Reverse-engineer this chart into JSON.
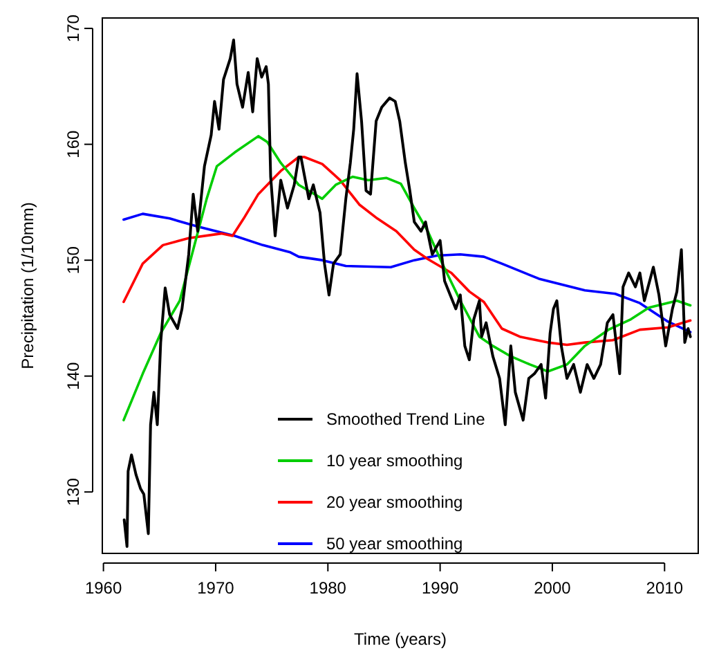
{
  "chart_data": {
    "type": "line",
    "xlabel": "Time (years)",
    "ylabel": "Precipitation (1/10mm)",
    "xlim": [
      1959.9,
      2013
    ],
    "ylim": [
      124.7,
      170.9
    ],
    "xticks": [
      1960,
      1970,
      1980,
      1990,
      2000,
      2010
    ],
    "yticks": [
      130,
      140,
      150,
      160,
      170
    ],
    "grid": false,
    "legend": "bottom",
    "marker": "none",
    "line_style": "solid",
    "series": [
      {
        "name": "Smoothed Trend Line",
        "color": "#000000",
        "x": [
          1961.85,
          1962.1,
          1962.2,
          1962.5,
          1962.9,
          1963.3,
          1963.6,
          1964.0,
          1964.2,
          1964.5,
          1964.8,
          1965.1,
          1965.5,
          1965.9,
          1966.6,
          1967.0,
          1967.6,
          1968.0,
          1968.4,
          1969.0,
          1969.6,
          1969.9,
          1970.3,
          1970.7,
          1971.3,
          1971.6,
          1971.9,
          1972.4,
          1972.9,
          1973.3,
          1973.7,
          1974.1,
          1974.5,
          1974.7,
          1974.9,
          1975.3,
          1975.8,
          1976.4,
          1977.0,
          1977.4,
          1977.6,
          1978.3,
          1978.7,
          1979.3,
          1979.7,
          1980.1,
          1980.5,
          1981.1,
          1981.6,
          1982.0,
          1982.3,
          1982.6,
          1983.0,
          1983.4,
          1983.8,
          1984.3,
          1984.8,
          1985.5,
          1986.0,
          1986.4,
          1986.9,
          1987.3,
          1987.7,
          1988.3,
          1988.7,
          1989.3,
          1990.0,
          1990.4,
          1990.9,
          1991.4,
          1991.8,
          1992.2,
          1992.6,
          1993.0,
          1993.5,
          1993.7,
          1994.1,
          1994.7,
          1995.3,
          1995.8,
          1996.3,
          1996.7,
          1997.4,
          1997.9,
          1998.4,
          1999.0,
          1999.4,
          1999.8,
          2000.1,
          2000.4,
          2000.8,
          2001.3,
          2001.9,
          2002.5,
          2003.1,
          2003.7,
          2004.3,
          2004.9,
          2005.4,
          2006.0,
          2006.3,
          2006.8,
          2007.4,
          2007.8,
          2008.2,
          2009.0,
          2009.5,
          2010.1,
          2010.7,
          2011.1,
          2011.5,
          2011.8,
          2012.1,
          2012.3
        ],
        "values": [
          127.6,
          125.3,
          131.8,
          133.2,
          131.5,
          130.3,
          129.8,
          126.4,
          135.8,
          138.6,
          135.8,
          142.9,
          147.6,
          145.3,
          144.1,
          145.8,
          150.5,
          155.7,
          152.5,
          158.1,
          160.8,
          163.7,
          161.3,
          165.6,
          167.4,
          169.0,
          165.2,
          163.2,
          166.2,
          162.8,
          167.4,
          165.8,
          166.7,
          165.2,
          157.2,
          152.1,
          156.9,
          154.5,
          156.5,
          158.9,
          158.9,
          155.3,
          156.5,
          154.1,
          149.7,
          147.0,
          149.7,
          150.5,
          155.3,
          158.4,
          161.3,
          166.1,
          162.0,
          156.0,
          155.7,
          162.0,
          163.2,
          164.0,
          163.7,
          162.0,
          158.4,
          156.0,
          153.3,
          152.5,
          153.3,
          150.5,
          151.7,
          148.2,
          147.0,
          145.8,
          147.0,
          142.6,
          141.4,
          144.9,
          146.5,
          143.4,
          144.6,
          141.7,
          139.8,
          135.8,
          142.6,
          138.6,
          136.2,
          139.8,
          140.2,
          141.0,
          138.1,
          143.7,
          145.8,
          146.5,
          142.6,
          139.8,
          141.0,
          138.6,
          141.0,
          139.8,
          141.0,
          144.6,
          145.3,
          140.2,
          147.7,
          148.9,
          147.7,
          148.9,
          146.5,
          149.4,
          147.0,
          142.6,
          145.8,
          147.3,
          150.9,
          142.9,
          144.1,
          143.4
        ]
      },
      {
        "name": "10 year smoothing",
        "color": "#00cd00",
        "x": [
          1961.8,
          1963.5,
          1965.1,
          1966.8,
          1968.0,
          1969.2,
          1970.1,
          1971.7,
          1973.8,
          1974.6,
          1975.8,
          1977.4,
          1979.5,
          1980.7,
          1982.2,
          1983.6,
          1985.2,
          1986.5,
          1987.7,
          1988.9,
          1990.2,
          1991.8,
          1993.5,
          1994.7,
          1996.3,
          1998.0,
          1999.6,
          2001.3,
          2002.9,
          2005.0,
          2007.0,
          2008.6,
          2011.1,
          2012.3
        ],
        "values": [
          136.2,
          140.2,
          143.7,
          146.5,
          150.9,
          155.3,
          158.1,
          159.3,
          160.7,
          160.2,
          158.4,
          156.5,
          155.3,
          156.5,
          157.2,
          156.9,
          157.1,
          156.6,
          154.5,
          152.5,
          149.7,
          146.5,
          143.4,
          142.6,
          141.7,
          141.0,
          140.4,
          141.0,
          142.6,
          144.0,
          144.9,
          145.9,
          146.5,
          146.1
        ]
      },
      {
        "name": "20 year smoothing",
        "color": "#ff0000",
        "x": [
          1961.8,
          1963.5,
          1965.3,
          1967.6,
          1970.5,
          1971.5,
          1972.5,
          1973.8,
          1975.8,
          1977.4,
          1977.9,
          1979.5,
          1981.1,
          1982.8,
          1984.4,
          1986.1,
          1987.7,
          1988.9,
          1991.0,
          1992.6,
          1993.9,
          1995.5,
          1997.1,
          1999.6,
          2001.3,
          2002.9,
          2005.4,
          2007.8,
          2010.3,
          2012.3
        ],
        "values": [
          146.4,
          149.7,
          151.3,
          151.9,
          152.3,
          152.1,
          153.6,
          155.7,
          157.7,
          158.9,
          158.9,
          158.3,
          156.9,
          154.8,
          153.6,
          152.5,
          150.9,
          150.1,
          148.9,
          147.3,
          146.4,
          144.1,
          143.4,
          142.9,
          142.7,
          142.9,
          143.1,
          144.0,
          144.2,
          144.8
        ]
      },
      {
        "name": "50 year smoothing",
        "color": "#0000ff",
        "x": [
          1961.8,
          1963.5,
          1965.9,
          1968.4,
          1971.7,
          1974.2,
          1976.6,
          1977.4,
          1979.5,
          1981.6,
          1985.6,
          1987.7,
          1989.7,
          1991.8,
          1993.9,
          1995.5,
          1998.8,
          2002.9,
          2005.6,
          2007.8,
          2010.3,
          2012.3
        ],
        "values": [
          153.5,
          154.0,
          153.6,
          152.9,
          152.1,
          151.3,
          150.7,
          150.3,
          150.0,
          149.5,
          149.4,
          150.0,
          150.4,
          150.5,
          150.3,
          149.7,
          148.4,
          147.4,
          147.1,
          146.3,
          144.7,
          143.8
        ]
      }
    ]
  }
}
